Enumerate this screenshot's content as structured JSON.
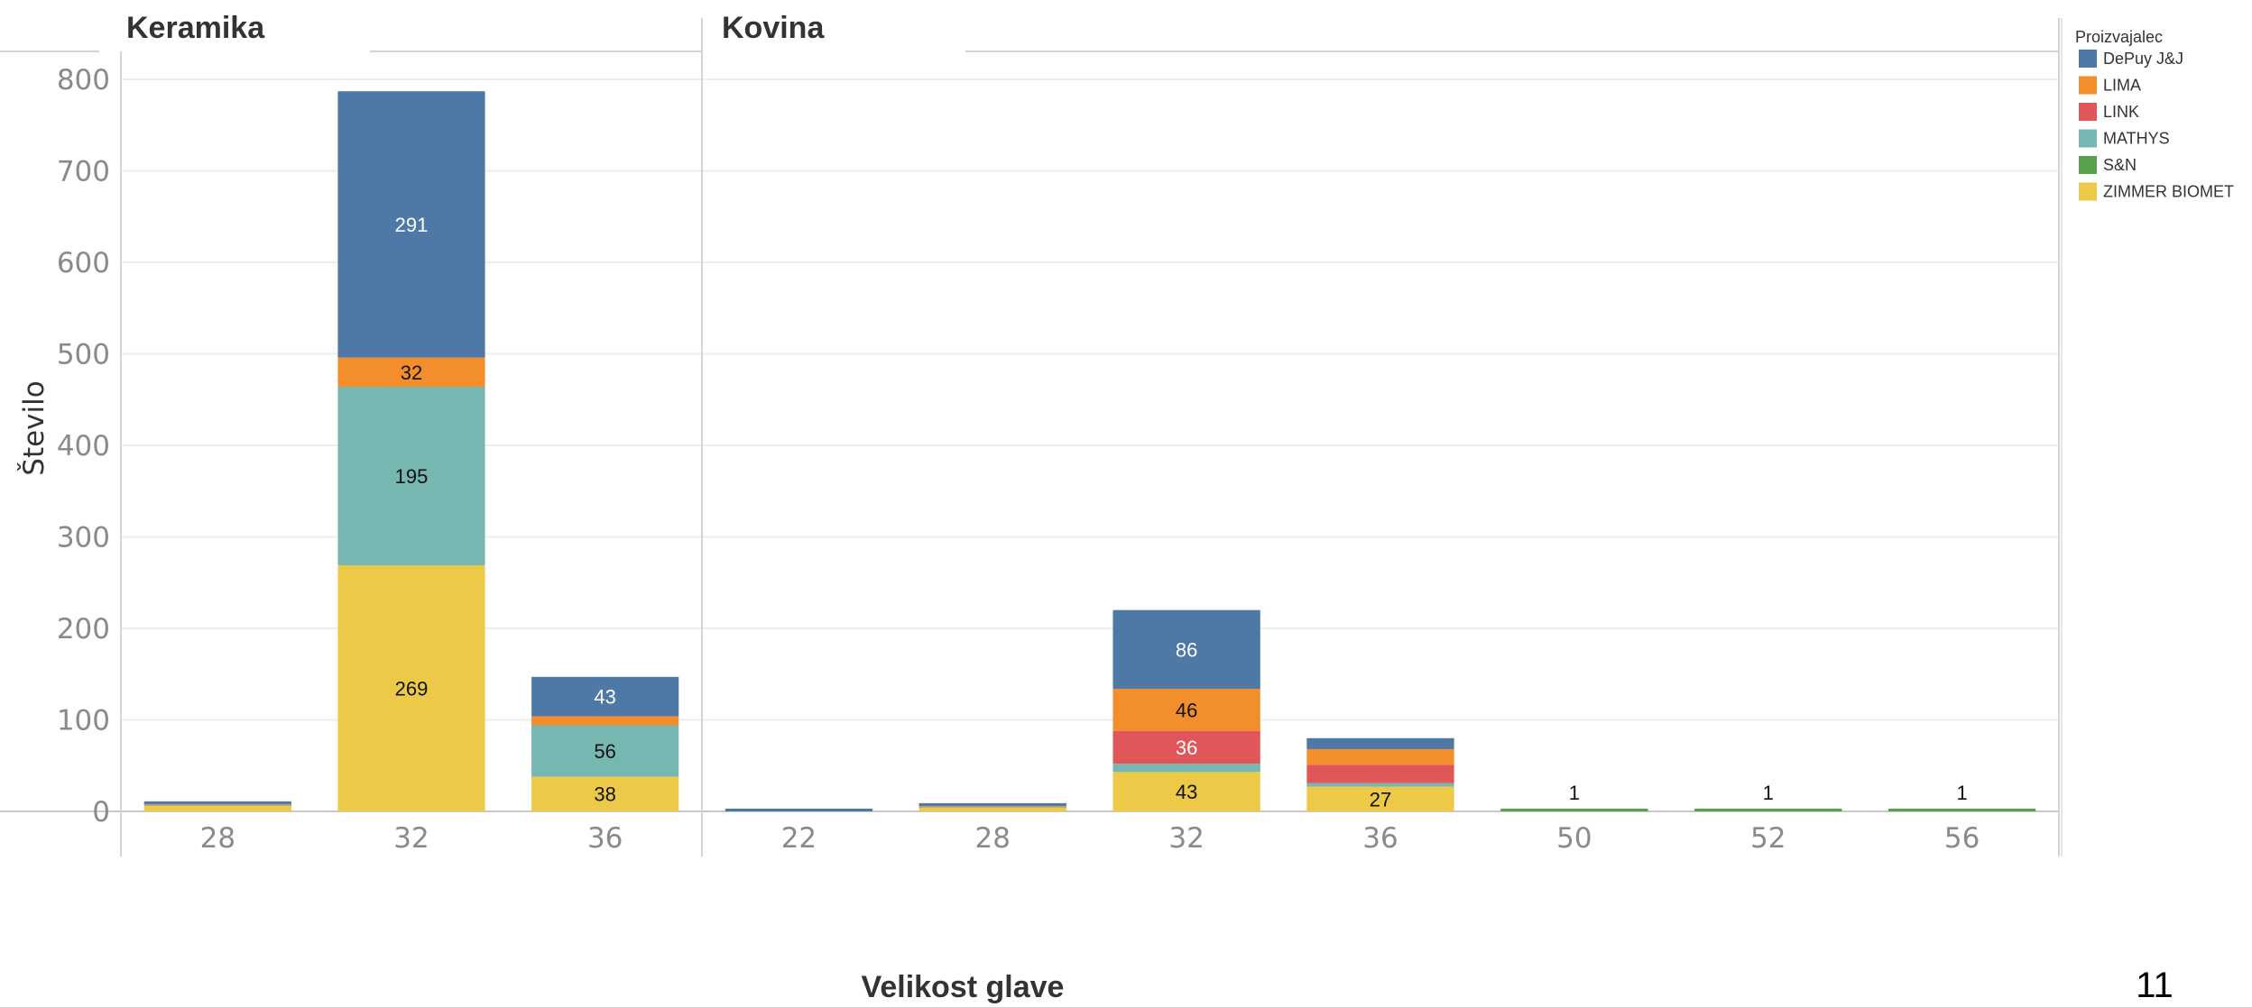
{
  "page_number": "11",
  "chart_data": {
    "type": "bar",
    "stacked": true,
    "xlabel": "Velikost glave",
    "ylabel": "Število",
    "ylim": [
      0,
      800
    ],
    "yticks": [
      0,
      100,
      200,
      300,
      400,
      500,
      600,
      700,
      800
    ],
    "grid": true,
    "legend": {
      "title": "Proizvajalec",
      "position": "top-right",
      "items": [
        {
          "name": "DePuy J&J",
          "color": "#4e79a7"
        },
        {
          "name": "LIMA",
          "color": "#f28e2b"
        },
        {
          "name": "LINK",
          "color": "#e15759"
        },
        {
          "name": "MATHYS",
          "color": "#76b7b2"
        },
        {
          "name": "S&N",
          "color": "#59a14f"
        },
        {
          "name": "ZIMMER BIOMET",
          "color": "#edc948"
        }
      ]
    },
    "panels": [
      {
        "title": "Keramika",
        "categories": [
          "28",
          "32",
          "36"
        ],
        "series": [
          {
            "name": "ZIMMER BIOMET",
            "values": [
              6,
              269,
              38
            ],
            "labels": [
              "",
              "269",
              "38"
            ]
          },
          {
            "name": "MATHYS",
            "values": [
              1,
              195,
              56
            ],
            "labels": [
              "",
              "195",
              "56"
            ]
          },
          {
            "name": "LIMA",
            "values": [
              1,
              32,
              10
            ],
            "labels": [
              "",
              "32",
              ""
            ]
          },
          {
            "name": "DePuy J&J",
            "values": [
              1,
              291,
              43
            ],
            "labels": [
              "",
              "291",
              "43"
            ]
          }
        ]
      },
      {
        "title": "Kovina",
        "categories": [
          "22",
          "28",
          "32",
          "36",
          "50",
          "52",
          "56"
        ],
        "series": [
          {
            "name": "ZIMMER BIOMET",
            "values": [
              0,
              4,
              43,
              27,
              0,
              0,
              0
            ],
            "labels": [
              "",
              "",
              "43",
              "27",
              "",
              "",
              ""
            ]
          },
          {
            "name": "MATHYS",
            "values": [
              0,
              1,
              9,
              4,
              0,
              0,
              0
            ],
            "labels": [
              "",
              "",
              "",
              "",
              "",
              "",
              ""
            ]
          },
          {
            "name": "LINK",
            "values": [
              0,
              0,
              36,
              20,
              0,
              0,
              0
            ],
            "labels": [
              "",
              "",
              "36",
              "",
              "",
              "",
              ""
            ]
          },
          {
            "name": "LIMA",
            "values": [
              0,
              1,
              46,
              17,
              0,
              0,
              0
            ],
            "labels": [
              "",
              "",
              "46",
              "",
              "",
              "",
              ""
            ]
          },
          {
            "name": "DePuy J&J",
            "values": [
              2,
              2,
              86,
              12,
              0,
              0,
              0
            ],
            "labels": [
              "",
              "",
              "86",
              "",
              "",
              "",
              ""
            ]
          },
          {
            "name": "S&N",
            "values": [
              0,
              0,
              0,
              0,
              1,
              1,
              1
            ],
            "labels": [
              "",
              "",
              "",
              "",
              "1",
              "1",
              "1"
            ]
          }
        ]
      }
    ]
  }
}
